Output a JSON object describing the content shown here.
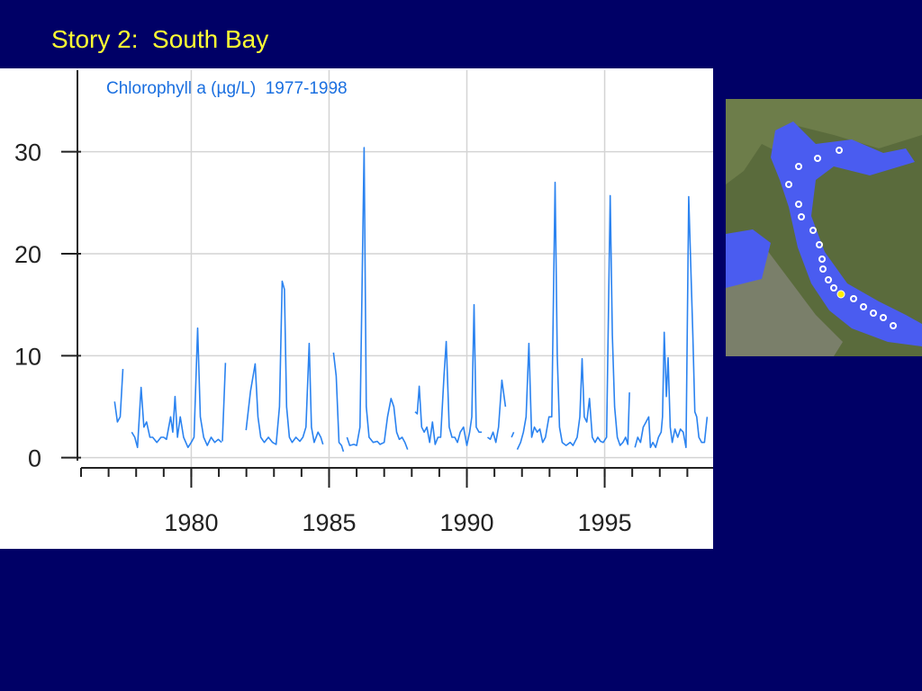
{
  "slide": {
    "title": "Story 2:  South Bay"
  },
  "chart_data": {
    "type": "line",
    "title": "Chlorophyll a (µg/L)  1977-1998",
    "color": "#2b83f0",
    "x": [
      1977.22,
      1977.32,
      1977.42,
      1977.52,
      null,
      1977.84,
      1977.95,
      1978.05,
      1978.18,
      1978.28,
      1978.38,
      1978.5,
      1978.6,
      1978.75,
      1978.9,
      1979.0,
      1979.1,
      1979.25,
      1979.33,
      1979.41,
      1979.5,
      1979.6,
      1979.72,
      1979.88,
      1980.0,
      1980.1,
      1980.23,
      1980.33,
      1980.45,
      1980.58,
      1980.72,
      1980.85,
      1980.98,
      1981.1,
      null,
      1981.13,
      1981.24,
      null,
      1981.99,
      1982.15,
      1982.32,
      1982.42,
      1982.52,
      1982.65,
      1982.8,
      1982.95,
      1983.08,
      1983.2,
      1983.3,
      1983.38,
      1983.46,
      1983.56,
      1983.66,
      1983.8,
      1983.94,
      1984.05,
      1984.16,
      1984.28,
      1984.36,
      1984.46,
      1984.6,
      1984.7,
      1984.78,
      null,
      1985.16,
      1985.26,
      1985.36,
      1985.45,
      1985.52,
      null,
      1985.65,
      1985.75,
      1985.9,
      1986.0,
      1986.12,
      1986.27,
      1986.35,
      1986.45,
      1986.6,
      1986.75,
      1986.85,
      1987.0,
      1987.12,
      1987.25,
      1987.35,
      1987.45,
      1987.55,
      1987.65,
      1987.75,
      1987.85,
      null,
      1988.12,
      1988.2,
      1988.27,
      1988.36,
      1988.45,
      1988.55,
      1988.65,
      1988.75,
      1988.85,
      1988.95,
      1989.05,
      1989.17,
      1989.25,
      1989.36,
      1989.46,
      1989.56,
      1989.66,
      1989.76,
      1989.88,
      1990.0,
      1990.1,
      1990.18,
      1990.26,
      1990.34,
      1990.44,
      1990.54,
      null,
      1990.75,
      1990.85,
      1990.95,
      1991.05,
      1991.15,
      1991.27,
      1991.4,
      null,
      1991.62,
      1991.7,
      null,
      1991.83,
      1991.95,
      1992.05,
      1992.15,
      1992.25,
      1992.35,
      1992.45,
      1992.55,
      1992.65,
      1992.75,
      1992.85,
      1992.98,
      1993.08,
      1993.2,
      1993.28,
      1993.36,
      1993.46,
      1993.6,
      1993.75,
      1993.85,
      1994.0,
      1994.1,
      1994.18,
      1994.26,
      1994.35,
      1994.45,
      1994.55,
      1994.65,
      1994.75,
      1994.85,
      1994.95,
      1995.07,
      1995.2,
      1995.28,
      1995.36,
      1995.46,
      1995.56,
      1995.66,
      1995.76,
      1995.84,
      1995.9,
      null,
      1996.1,
      1996.2,
      1996.3,
      1996.4,
      1996.5,
      1996.6,
      1996.66,
      1996.75,
      1996.85,
      1996.95,
      1997.05,
      1997.1,
      1997.16,
      1997.24,
      1997.3,
      1997.38,
      1997.45,
      1997.55,
      1997.65,
      1997.75,
      1997.85,
      1997.95,
      1998.05,
      1998.2,
      1998.27,
      1998.34,
      1998.42,
      1998.52,
      1998.62,
      1998.72
    ],
    "values": [
      5.5,
      3.5,
      4,
      8.7,
      null,
      2.5,
      2,
      1,
      6.9,
      3,
      3.5,
      2,
      2,
      1.5,
      2,
      2,
      1.8,
      4,
      2.5,
      6,
      2,
      4,
      2,
      1,
      1.5,
      2,
      12.7,
      4,
      2,
      1.2,
      2,
      1.5,
      1.8,
      1.5,
      null,
      1.6,
      9.3,
      null,
      2.7,
      6.5,
      9.2,
      4,
      2,
      1.5,
      2,
      1.5,
      1.3,
      5,
      17.3,
      16.5,
      5,
      2,
      1.5,
      2,
      1.6,
      2,
      3,
      11.2,
      3,
      1.5,
      2.5,
      2,
      1.3,
      null,
      10.3,
      8,
      1.5,
      1.2,
      0.6,
      null,
      2,
      1.2,
      1.3,
      1.2,
      3,
      30.4,
      5,
      2,
      1.5,
      1.6,
      1.3,
      1.5,
      4,
      5.8,
      5,
      2.5,
      1.8,
      2,
      1.5,
      0.8,
      null,
      4.5,
      4.3,
      7,
      3,
      2.5,
      3,
      1.5,
      3.5,
      1.3,
      2,
      2,
      8,
      11.4,
      3,
      2,
      2,
      1.5,
      2.5,
      3,
      1.2,
      2.5,
      4,
      15,
      3,
      2.5,
      2.5,
      null,
      2,
      1.8,
      2.5,
      1.5,
      3,
      7.6,
      5,
      null,
      2,
      2.5,
      null,
      0.8,
      1.5,
      2.5,
      4,
      11.2,
      2,
      3,
      2.5,
      2.8,
      1.5,
      2,
      4,
      4,
      27,
      10,
      3,
      1.5,
      1.2,
      1.5,
      1.2,
      2,
      4,
      9.7,
      4,
      3.5,
      5.8,
      2,
      1.5,
      2,
      1.6,
      1.5,
      2,
      25.7,
      12,
      5,
      2,
      1.2,
      1.5,
      2,
      1.3,
      6.4,
      null,
      1,
      2,
      1.5,
      3,
      3.5,
      4,
      1,
      1.5,
      1,
      2,
      2.5,
      4,
      12.3,
      6,
      9.8,
      3,
      1.5,
      2.8,
      2,
      2.8,
      2.5,
      1,
      25.6,
      12,
      4.5,
      4,
      2,
      1.5,
      1.5,
      4
    ],
    "xlim": [
      1976,
      1999
    ],
    "xticks": [
      1980,
      1985,
      1990,
      1995
    ],
    "xminorticks": [
      1976,
      1977,
      1978,
      1979,
      1980,
      1981,
      1982,
      1983,
      1984,
      1985,
      1986,
      1987,
      1988,
      1989,
      1990,
      1991,
      1992,
      1993,
      1994,
      1995,
      1996,
      1997,
      1998
    ],
    "ylim": [
      -1,
      38
    ],
    "yticks": [
      0,
      10,
      20,
      30
    ],
    "grid": true
  }
}
